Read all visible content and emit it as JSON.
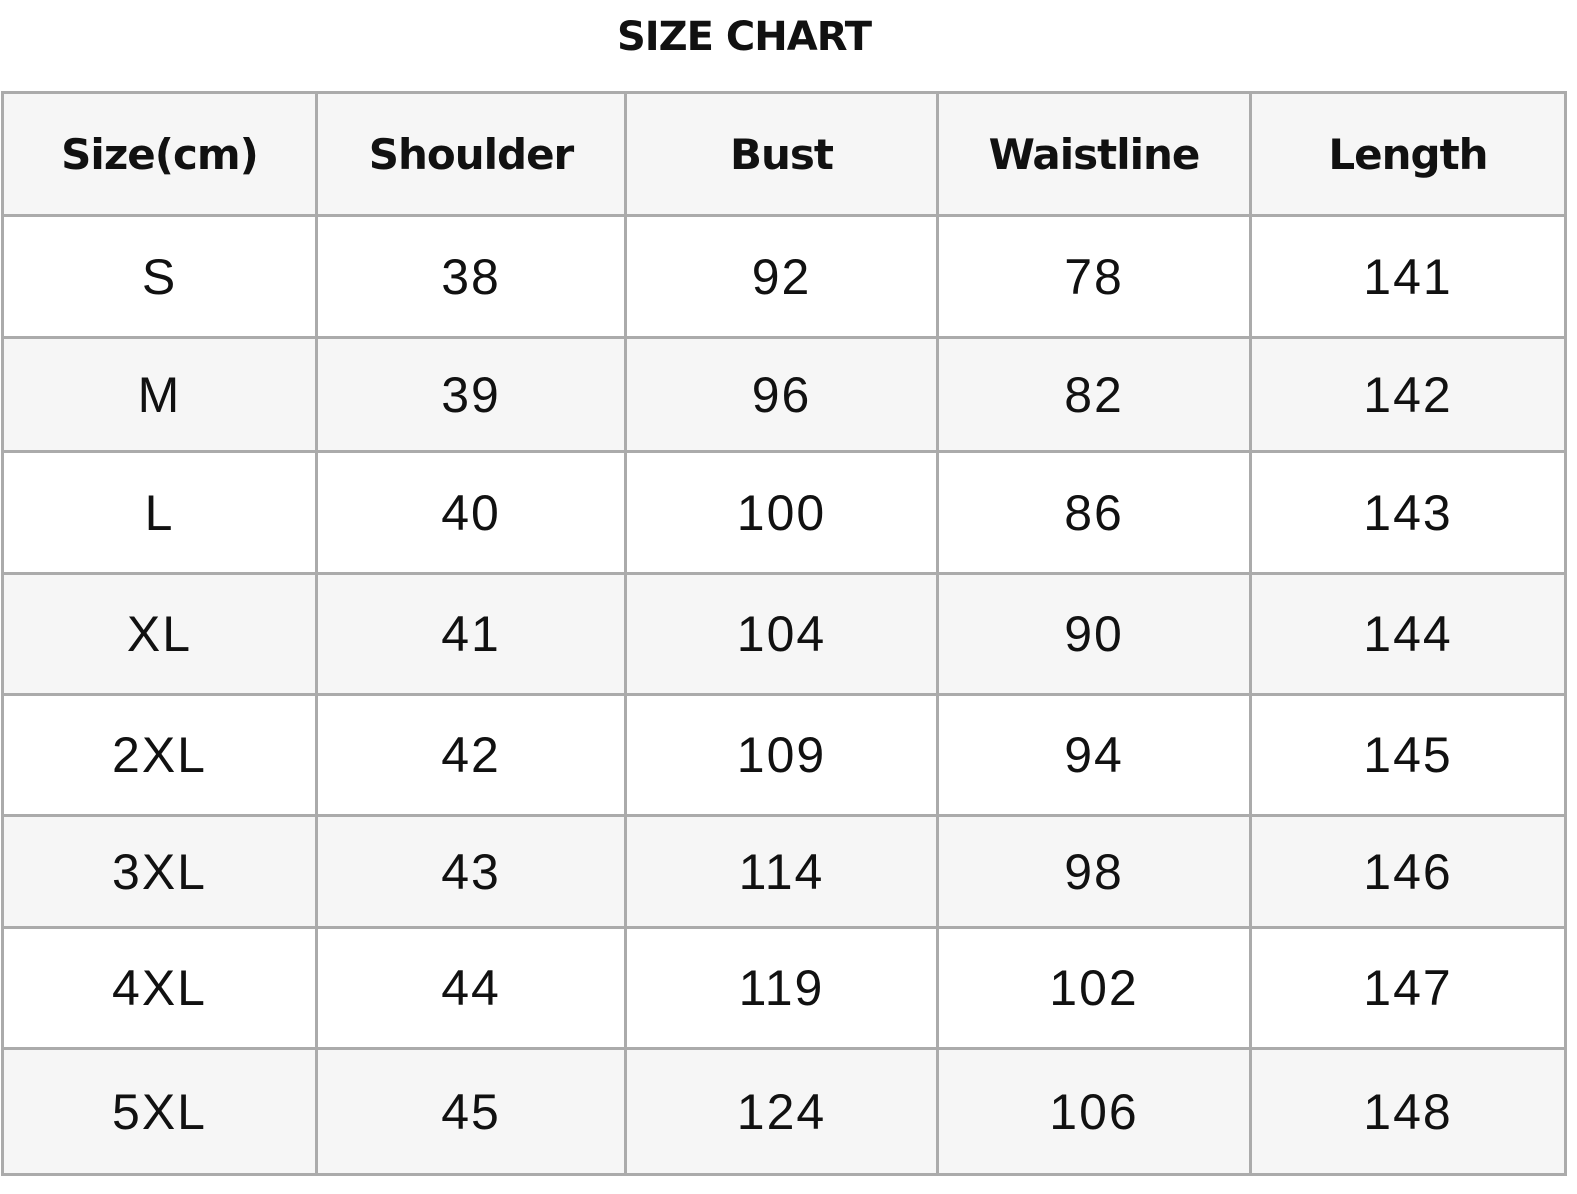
{
  "title": "SIZE CHART",
  "table": {
    "headers": [
      "Size(cm)",
      "Shoulder",
      "Bust",
      "Waistline",
      "Length"
    ],
    "rows": [
      [
        "S",
        "38",
        "92",
        "78",
        "141"
      ],
      [
        "M",
        "39",
        "96",
        "82",
        "142"
      ],
      [
        "L",
        "40",
        "100",
        "86",
        "143"
      ],
      [
        "XL",
        "41",
        "104",
        "90",
        "144"
      ],
      [
        "2XL",
        "42",
        "109",
        "94",
        "145"
      ],
      [
        "3XL",
        "43",
        "114",
        "98",
        "146"
      ],
      [
        "4XL",
        "44",
        "119",
        "102",
        "147"
      ],
      [
        "5XL",
        "45",
        "124",
        "106",
        "148"
      ]
    ]
  },
  "colors": {
    "header_bg": "#f6f6f6",
    "alt_row_bg": "#f6f6f6",
    "border": "#ababab"
  }
}
